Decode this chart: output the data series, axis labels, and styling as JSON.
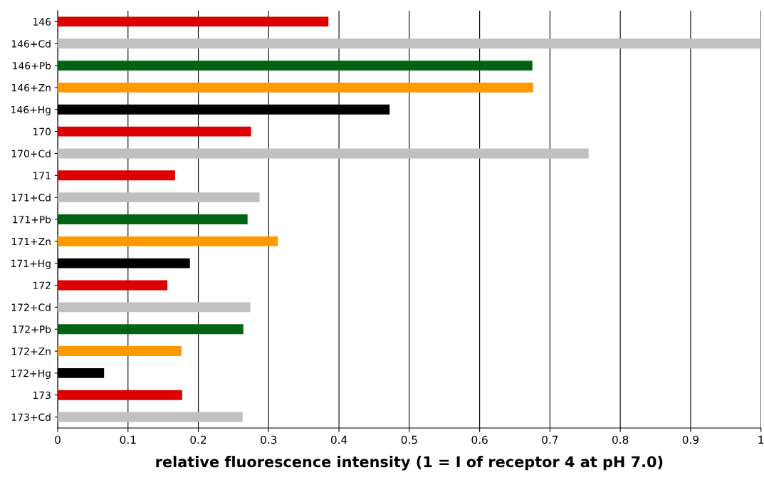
{
  "chart_data": {
    "type": "bar",
    "orientation": "horizontal",
    "categories": [
      "146",
      "146+Cd",
      "146+Pb",
      "146+Zn",
      "146+Hg",
      "170",
      "170+Cd",
      "171",
      "171+Cd",
      "171+Pb",
      "171+Zn",
      "171+Hg",
      "172",
      "172+Cd",
      "172+Pb",
      "172+Zn",
      "172+Hg",
      "173",
      "173+Cd"
    ],
    "values": [
      0.385,
      1.0,
      0.675,
      0.676,
      0.472,
      0.275,
      0.755,
      0.167,
      0.287,
      0.27,
      0.313,
      0.188,
      0.156,
      0.274,
      0.264,
      0.176,
      0.066,
      0.177,
      0.263
    ],
    "colors": [
      "#dd0000",
      "#c0c0c0",
      "#006414",
      "#ff9900",
      "#000000",
      "#dd0000",
      "#c0c0c0",
      "#dd0000",
      "#c0c0c0",
      "#006414",
      "#ff9900",
      "#000000",
      "#dd0000",
      "#c0c0c0",
      "#006414",
      "#ff9900",
      "#000000",
      "#dd0000",
      "#c0c0c0"
    ],
    "xlabel": "relative fluorescence intensity (1 = I of receptor 4 at pH 7.0)",
    "xlim": [
      0,
      1
    ],
    "xticks": [
      0,
      0.1,
      0.2,
      0.3,
      0.4,
      0.5,
      0.6,
      0.7,
      0.8,
      0.9,
      1
    ],
    "grid": "x",
    "legend": false
  }
}
